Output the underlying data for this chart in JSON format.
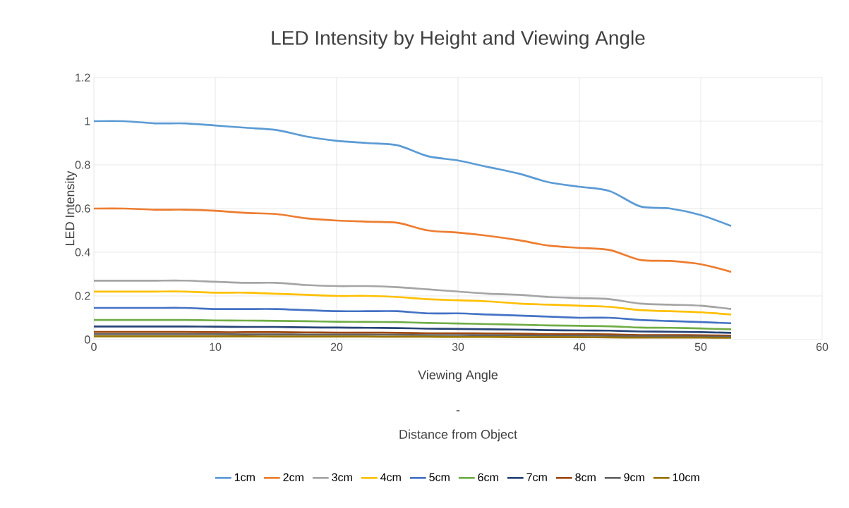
{
  "chart_data": {
    "type": "line",
    "title": "LED Intensity by Height and Viewing Angle",
    "xlabel": "Viewing Angle",
    "ylabel": "LED Intensity",
    "annotations": [
      "-",
      "Distance from Object"
    ],
    "x": [
      0,
      2.5,
      5,
      7.5,
      10,
      12.5,
      15,
      17.5,
      20,
      22.5,
      25,
      27.5,
      30,
      32.5,
      35,
      37.5,
      40,
      42.5,
      45,
      47.5,
      50,
      52.5
    ],
    "xlim": [
      0,
      60
    ],
    "xticks": [
      0,
      10,
      20,
      30,
      40,
      50,
      60
    ],
    "ylim": [
      0,
      1.2
    ],
    "yticks": [
      0,
      0.2,
      0.4,
      0.6,
      0.8,
      1,
      1.2
    ],
    "grid": true,
    "legend": "bottom",
    "marker": "none",
    "line_style": "solid",
    "series": [
      {
        "name": "1cm",
        "color": "#5b9bd5",
        "values": [
          1.0,
          1.0,
          0.99,
          0.99,
          0.98,
          0.97,
          0.96,
          0.93,
          0.91,
          0.9,
          0.89,
          0.84,
          0.82,
          0.79,
          0.76,
          0.72,
          0.7,
          0.68,
          0.61,
          0.6,
          0.57,
          0.52
        ]
      },
      {
        "name": "2cm",
        "color": "#ed7d31",
        "values": [
          0.6,
          0.6,
          0.595,
          0.595,
          0.59,
          0.58,
          0.575,
          0.555,
          0.545,
          0.54,
          0.535,
          0.5,
          0.49,
          0.475,
          0.455,
          0.43,
          0.42,
          0.41,
          0.365,
          0.36,
          0.345,
          0.31
        ]
      },
      {
        "name": "3cm",
        "color": "#a5a5a5",
        "values": [
          0.27,
          0.27,
          0.27,
          0.27,
          0.265,
          0.26,
          0.26,
          0.25,
          0.245,
          0.245,
          0.24,
          0.23,
          0.22,
          0.21,
          0.205,
          0.195,
          0.19,
          0.185,
          0.165,
          0.16,
          0.155,
          0.14
        ]
      },
      {
        "name": "4cm",
        "color": "#ffc000",
        "values": [
          0.22,
          0.22,
          0.22,
          0.22,
          0.215,
          0.215,
          0.21,
          0.205,
          0.2,
          0.2,
          0.195,
          0.185,
          0.18,
          0.175,
          0.165,
          0.16,
          0.155,
          0.15,
          0.135,
          0.13,
          0.125,
          0.115
        ]
      },
      {
        "name": "5cm",
        "color": "#4472c4",
        "values": [
          0.145,
          0.145,
          0.145,
          0.145,
          0.14,
          0.14,
          0.14,
          0.135,
          0.13,
          0.13,
          0.13,
          0.12,
          0.12,
          0.115,
          0.11,
          0.105,
          0.1,
          0.1,
          0.09,
          0.085,
          0.08,
          0.075
        ]
      },
      {
        "name": "6cm",
        "color": "#70ad47",
        "values": [
          0.09,
          0.09,
          0.09,
          0.09,
          0.088,
          0.087,
          0.086,
          0.084,
          0.082,
          0.081,
          0.08,
          0.076,
          0.074,
          0.071,
          0.068,
          0.065,
          0.063,
          0.061,
          0.055,
          0.054,
          0.051,
          0.047
        ]
      },
      {
        "name": "7cm",
        "color": "#264478",
        "values": [
          0.06,
          0.06,
          0.06,
          0.06,
          0.059,
          0.058,
          0.058,
          0.056,
          0.055,
          0.054,
          0.053,
          0.05,
          0.049,
          0.047,
          0.046,
          0.043,
          0.042,
          0.041,
          0.037,
          0.036,
          0.034,
          0.031
        ]
      },
      {
        "name": "8cm",
        "color": "#9e480e",
        "values": [
          0.035,
          0.035,
          0.035,
          0.035,
          0.034,
          0.034,
          0.034,
          0.033,
          0.032,
          0.032,
          0.031,
          0.029,
          0.029,
          0.028,
          0.027,
          0.025,
          0.025,
          0.024,
          0.021,
          0.021,
          0.02,
          0.018
        ]
      },
      {
        "name": "9cm",
        "color": "#636363",
        "values": [
          0.025,
          0.025,
          0.025,
          0.025,
          0.025,
          0.024,
          0.024,
          0.023,
          0.023,
          0.023,
          0.022,
          0.021,
          0.021,
          0.02,
          0.019,
          0.018,
          0.018,
          0.017,
          0.015,
          0.015,
          0.014,
          0.013
        ]
      },
      {
        "name": "10cm",
        "color": "#997300",
        "values": [
          0.015,
          0.015,
          0.015,
          0.015,
          0.015,
          0.015,
          0.014,
          0.014,
          0.014,
          0.014,
          0.013,
          0.013,
          0.012,
          0.012,
          0.011,
          0.011,
          0.011,
          0.01,
          0.009,
          0.009,
          0.009,
          0.008
        ]
      }
    ]
  }
}
